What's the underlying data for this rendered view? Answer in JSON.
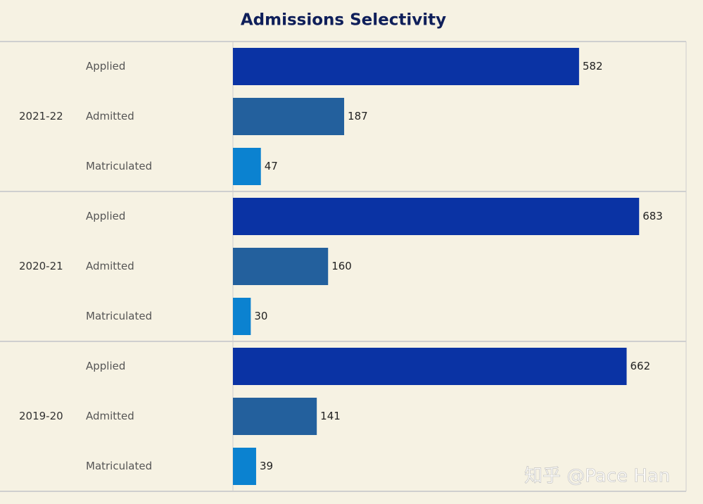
{
  "chart_data": {
    "type": "bar",
    "title": "Admissions Selectivity",
    "categories": [
      "Applied",
      "Admitted",
      "Matriculated"
    ],
    "colors": [
      "#0a33a4",
      "#23609d",
      "#0b82d0"
    ],
    "groups": [
      {
        "name": "2021-22",
        "values": [
          582,
          187,
          47
        ]
      },
      {
        "name": "2020-21",
        "values": [
          683,
          160,
          30
        ]
      },
      {
        "name": "2019-20",
        "values": [
          662,
          141,
          39
        ]
      }
    ],
    "xlim": [
      0,
      762
    ],
    "watermark": "知乎 @Pace Han"
  }
}
